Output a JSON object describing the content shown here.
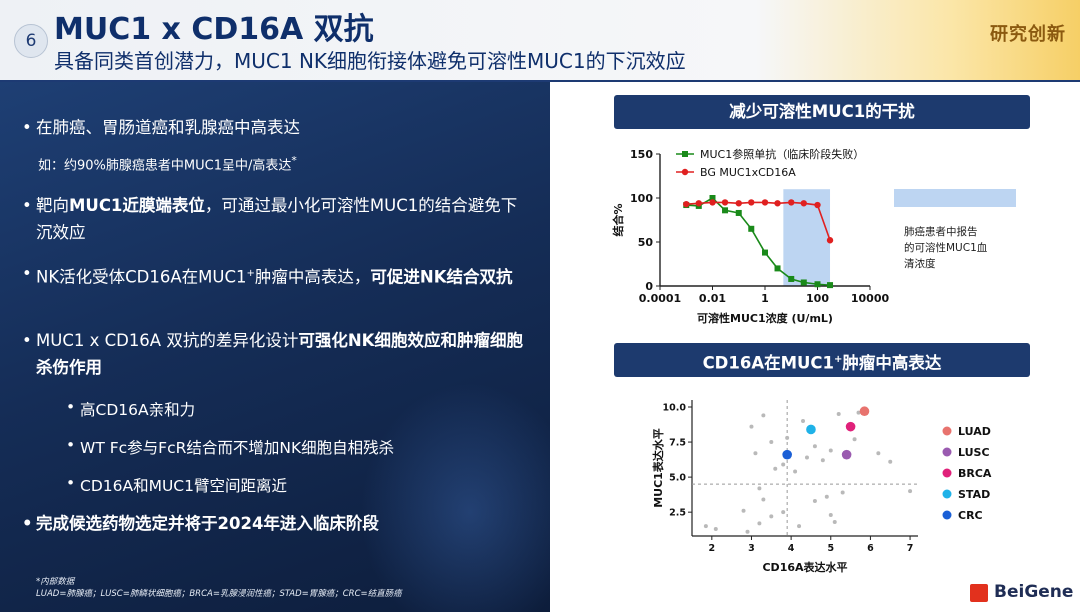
{
  "header": {
    "number": "6",
    "title": "MUC1 x CD16A 双抗",
    "subtitle": "具备同类首创潜力，MUC1 NK细胞衔接体避免可溶性MUC1的下沉效应",
    "tag": "研究创新"
  },
  "left_panel": {
    "bullet1": "在肺癌、胃肠道癌和乳腺癌中高表达",
    "note1": "如：约90%肺腺癌患者中MUC1呈中/高表达",
    "note1_sup": "*",
    "bullet2_a": "靶向",
    "bullet2_b": "MUC1近膜端表位",
    "bullet2_c": "，可通过最小化可溶性MUC1的结合避免下沉效应",
    "bullet3_a": "NK活化受体CD16A在MUC1",
    "bullet3_sup": "+",
    "bullet3_b": "肿瘤中高表达，",
    "bullet3_c": "可促进NK结合双抗",
    "bullet4_a": "MUC1 x CD16A 双抗的差异化设计",
    "bullet4_b": "可强化NK细胞效应",
    "bullet4_c": "和肿瘤细胞杀伤作用",
    "sub1": "高CD16A亲和力",
    "sub2": "WT Fc参与FcR结合而不增加NK细胞自相残杀",
    "sub3": "CD16A和MUC1臂空间距离近",
    "bullet5_a": "完成候选药物选定并将于",
    "bullet5_b": "2024年进入临床阶段",
    "footnote1": "*内部数据",
    "footnote2": "LUAD=肺腺癌；LUSC=肺鳞状细胞癌；BRCA=乳腺浸润性癌；STAD=胃腺癌；CRC=结直肠癌"
  },
  "ribbon1": "减少可溶性MUC1的干扰",
  "ribbon2_a": "CD16A在MUC1",
  "ribbon2_sup": "+",
  "ribbon2_b": "肿瘤中高表达",
  "logo": "BeiGene",
  "colors": {
    "navy": "#1d3a6e",
    "green": "#1a8a1a",
    "red": "#e02020",
    "band": "#bdd5f2"
  },
  "chart_data": [
    {
      "type": "line",
      "title": "",
      "xlabel": "可溶性MUC1浓度 (U/mL)",
      "ylabel": "结合%",
      "x_scale": "log",
      "xlim": [
        0.0001,
        10000
      ],
      "ylim": [
        0,
        150
      ],
      "x_ticks": [
        "0.0001",
        "0.01",
        "1",
        "100",
        "10000"
      ],
      "y_ticks": [
        "0",
        "50",
        "100",
        "150"
      ],
      "band_annotation": "肺癌患者中报告的可溶性MUC1血清浓度",
      "band_range": [
        5,
        300
      ],
      "legend_position": "top-left",
      "series": [
        {
          "name": "MUC1参照单抗（临床阶段失败）",
          "color": "#1a8a1a",
          "marker": "square",
          "x": [
            0.001,
            0.003,
            0.01,
            0.03,
            0.1,
            0.3,
            1,
            3,
            10,
            30,
            100,
            300
          ],
          "y": [
            92,
            91,
            100,
            86,
            83,
            65,
            38,
            20,
            8,
            4,
            2,
            1
          ]
        },
        {
          "name": "BG MUC1xCD16A",
          "color": "#e02020",
          "marker": "circle",
          "x": [
            0.001,
            0.003,
            0.01,
            0.03,
            0.1,
            0.3,
            1,
            3,
            10,
            30,
            100,
            300
          ],
          "y": [
            93,
            94,
            95,
            95,
            94,
            95,
            95,
            94,
            95,
            94,
            92,
            52
          ]
        }
      ]
    },
    {
      "type": "scatter",
      "title": "",
      "xlabel": "CD16A表达水平",
      "ylabel": "MUC1表达水平",
      "xlim": [
        1.5,
        7.2
      ],
      "ylim": [
        0.8,
        10.5
      ],
      "x_ticks": [
        "2",
        "3",
        "4",
        "5",
        "6",
        "7"
      ],
      "y_ticks": [
        "2.5",
        "5.0",
        "7.5",
        "10.0"
      ],
      "reference_lines": {
        "x": 3.9,
        "y": 4.5
      },
      "legend_position": "right",
      "highlights": [
        {
          "name": "LUAD",
          "color": "#e8736e",
          "x": 5.85,
          "y": 9.7
        },
        {
          "name": "LUSC",
          "color": "#9a5bb0",
          "x": 5.4,
          "y": 6.6
        },
        {
          "name": "BRCA",
          "color": "#e0217a",
          "x": 5.5,
          "y": 8.6
        },
        {
          "name": "STAD",
          "color": "#1fb2e8",
          "x": 4.5,
          "y": 8.4
        },
        {
          "name": "CRC",
          "color": "#1a5fd6",
          "x": 3.9,
          "y": 6.6
        }
      ],
      "others": [
        {
          "x": 1.85,
          "y": 1.5
        },
        {
          "x": 2.1,
          "y": 1.3
        },
        {
          "x": 2.9,
          "y": 1.1
        },
        {
          "x": 3.2,
          "y": 1.7
        },
        {
          "x": 3.5,
          "y": 2.2
        },
        {
          "x": 3.3,
          "y": 3.4
        },
        {
          "x": 3.2,
          "y": 4.2
        },
        {
          "x": 3.8,
          "y": 2.5
        },
        {
          "x": 4.2,
          "y": 1.5
        },
        {
          "x": 4.6,
          "y": 3.3
        },
        {
          "x": 5.0,
          "y": 2.3
        },
        {
          "x": 4.9,
          "y": 3.6
        },
        {
          "x": 5.3,
          "y": 3.9
        },
        {
          "x": 5.1,
          "y": 1.8
        },
        {
          "x": 3.6,
          "y": 5.6
        },
        {
          "x": 3.8,
          "y": 5.9
        },
        {
          "x": 3.5,
          "y": 7.5
        },
        {
          "x": 3.0,
          "y": 8.6
        },
        {
          "x": 3.3,
          "y": 9.4
        },
        {
          "x": 4.3,
          "y": 9.0
        },
        {
          "x": 5.2,
          "y": 9.5
        },
        {
          "x": 5.7,
          "y": 9.6
        },
        {
          "x": 4.6,
          "y": 7.2
        },
        {
          "x": 4.8,
          "y": 6.2
        },
        {
          "x": 3.9,
          "y": 7.8
        },
        {
          "x": 5.0,
          "y": 6.9
        },
        {
          "x": 6.2,
          "y": 6.7
        },
        {
          "x": 6.5,
          "y": 6.1
        },
        {
          "x": 7.0,
          "y": 4.0
        },
        {
          "x": 3.1,
          "y": 6.7
        },
        {
          "x": 4.1,
          "y": 5.4
        },
        {
          "x": 2.8,
          "y": 2.6
        },
        {
          "x": 4.4,
          "y": 6.4
        },
        {
          "x": 5.6,
          "y": 7.7
        }
      ]
    }
  ]
}
